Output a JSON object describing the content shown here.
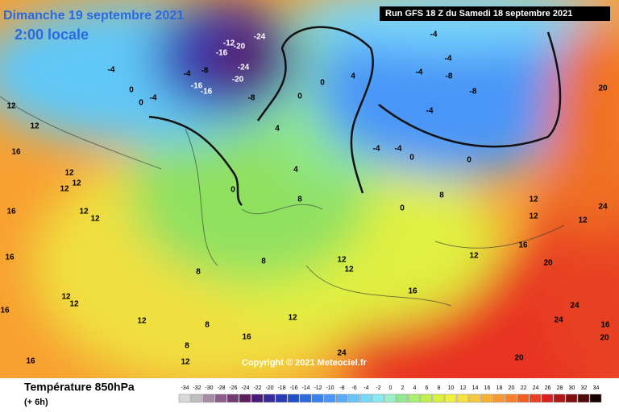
{
  "header": {
    "date": "Dimanche 19 septembre 2021",
    "time": "2:00 locale",
    "run": "Run GFS 18 Z du Samedi 18 septembre 2021"
  },
  "map": {
    "contour_labels": [
      -24,
      -12,
      -20,
      -16,
      -8,
      -4,
      -16,
      -20,
      -24,
      -16,
      -8,
      0,
      -4,
      0,
      0,
      -4,
      12,
      12,
      16,
      12,
      12,
      12,
      16,
      12,
      12,
      16,
      12,
      12,
      16,
      8,
      8,
      0,
      4,
      4,
      8,
      0,
      4,
      -4,
      -4,
      -4,
      -8,
      -8,
      -4,
      -4,
      -4,
      0,
      0,
      8,
      0,
      12,
      12,
      16,
      12,
      24,
      20,
      20,
      24,
      24,
      20,
      24,
      12,
      16,
      8,
      8,
      12,
      16,
      12,
      16,
      12,
      12,
      12,
      16,
      20
    ],
    "copyright": "Copyright © 2021 Meteociel.fr"
  },
  "footer": {
    "title": "Température 850hPa",
    "step": "(+ 6h)"
  },
  "legend": {
    "ticks": [
      -34,
      -32,
      -30,
      -28,
      -26,
      -24,
      -22,
      -20,
      -18,
      -16,
      -14,
      -12,
      -10,
      -8,
      -6,
      -4,
      -2,
      0,
      2,
      4,
      6,
      8,
      10,
      12,
      14,
      16,
      18,
      20,
      22,
      24,
      26,
      28,
      30,
      32,
      34
    ],
    "colors": [
      "#d9d9d9",
      "#bfbfbf",
      "#a68aa6",
      "#8c5c8c",
      "#733a73",
      "#5c1f5c",
      "#4a1a7a",
      "#3a2a9a",
      "#2a3ab5",
      "#2050c8",
      "#2a6ae0",
      "#3a80f0",
      "#4a96f8",
      "#5aacfa",
      "#6ac4fc",
      "#7ad8fa",
      "#8ae8f0",
      "#9af0c8",
      "#90e890",
      "#a8f070",
      "#c0f050",
      "#d8f040",
      "#f0f040",
      "#f8e040",
      "#f8c840",
      "#f8b030",
      "#f89830",
      "#f88028",
      "#f06020",
      "#e84020",
      "#d82020",
      "#b01818",
      "#801010",
      "#500808",
      "#180000"
    ]
  }
}
